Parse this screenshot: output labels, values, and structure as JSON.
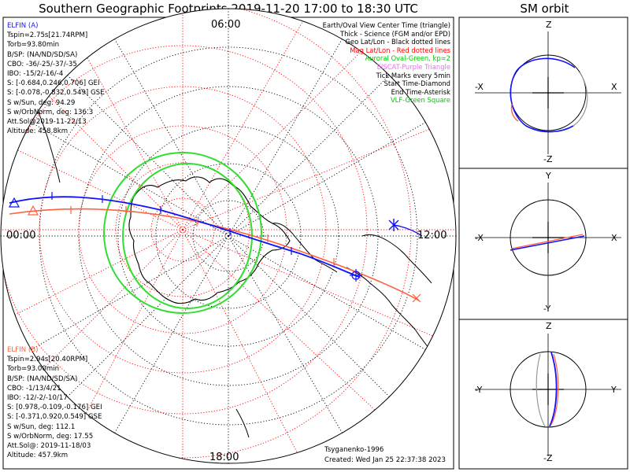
{
  "title": "Southern Geographic Footprints 2019-11-20 17:00 to 18:30 UTC",
  "sm_title": "SM orbit",
  "time_labels": {
    "top": "06:00",
    "left": "00:00",
    "right": "12:00",
    "bottom": "18:00"
  },
  "elfin_a": {
    "name": "ELFIN (A)",
    "color": "#1010ff",
    "lines": [
      "Tspin=2.75s[21.74RPM]",
      "Torb=93.80min",
      "B/SP: (NA/ND/SD/SA)",
      "CBO: -36/-25/-37/-35",
      "IBO: -15/2/-16/-4",
      "S: [-0.684,0.246,0.706] GEI",
      "S: [-0.078,-0.832,0.549] GSE",
      "S w/Sun, deg: 94.29",
      "S w/OrbNorm, deg: 136.3",
      "Att.Sol@2019-11-22/13",
      "Altitude: 458.8km"
    ]
  },
  "elfin_b": {
    "name": "ELFIN (B)",
    "color": "#ff6040",
    "lines": [
      "Tspin=2.94s[20.40RPM]",
      "Torb=93.00min",
      "B/SP: (NA/ND/SD/SA)",
      "CBO: -1/13/4/21",
      "IBO: -12/-2/-10/17",
      "S: [0.978,-0.109,-0.176] GEI",
      "S: [-0.371,0.920,0.549] GSE",
      "S w/Sun, deg: 112.1",
      "S w/OrbNorm, deg: 17.55",
      "Att.Sol@: 2019-11-18/03",
      "Altitude: 457.9km"
    ]
  },
  "legend": [
    {
      "text": "Earth/Oval View Center Time (triangle)",
      "color": "#000000"
    },
    {
      "text": "Thick - Science (FGM and/or EPD)",
      "color": "#000000"
    },
    {
      "text": "Geo Lat/Lon - Black dotted lines",
      "color": "#000000"
    },
    {
      "text": "Mag Lat/Lon - Red dotted lines",
      "color": "#ff0000"
    },
    {
      "text": "Auroral Oval-Green, kp=2",
      "color": "#00cc00"
    },
    {
      "text": "EISCAT-Purple Triangle",
      "color": "#ff60ff"
    },
    {
      "text": "Tick Marks every 5min",
      "color": "#000000"
    },
    {
      "text": "Start Time-Diamond",
      "color": "#000000"
    },
    {
      "text": "End Time-Asterisk",
      "color": "#000000"
    },
    {
      "text": "VLF-Green Square",
      "color": "#00cc00"
    }
  ],
  "model": "Tsyganenko-1996",
  "created": "Created: Wed Jan 25 22:37:38 2023",
  "sm_panels": [
    {
      "top": "Z",
      "bottom": "-Z",
      "left": "-X",
      "right": "X"
    },
    {
      "top": "Y",
      "bottom": "-Y",
      "left": "-X",
      "right": "X"
    },
    {
      "top": "Z",
      "bottom": "-Z",
      "left": "-Y",
      "right": "Y"
    }
  ]
}
